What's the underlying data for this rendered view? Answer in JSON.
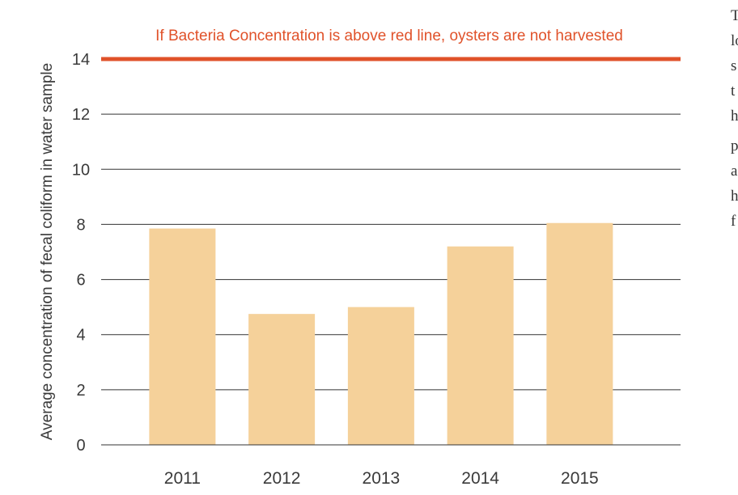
{
  "chart_data": {
    "type": "bar",
    "title": "",
    "annotation": "If Bacteria Concentration is above red line, oysters are not harvested",
    "ylabel": "Average concentration of fecal coliform in water sample",
    "xlabel": "",
    "categories": [
      "2011",
      "2012",
      "2013",
      "2014",
      "2015"
    ],
    "values": [
      7.85,
      4.75,
      5.0,
      7.2,
      8.05
    ],
    "ylim": [
      0,
      14
    ],
    "yticks": [
      "0",
      "2",
      "4",
      "6",
      "8",
      "10",
      "12",
      "14"
    ],
    "grid": true,
    "threshold": 14,
    "colors": {
      "bar": "#f5d19a",
      "threshold": "#e0522a",
      "grid": "#333333",
      "text": "#3a3a3a"
    }
  },
  "side_text": [
    "T",
    "lo",
    "s",
    "t",
    "h",
    "p",
    "a",
    "h",
    "f"
  ]
}
